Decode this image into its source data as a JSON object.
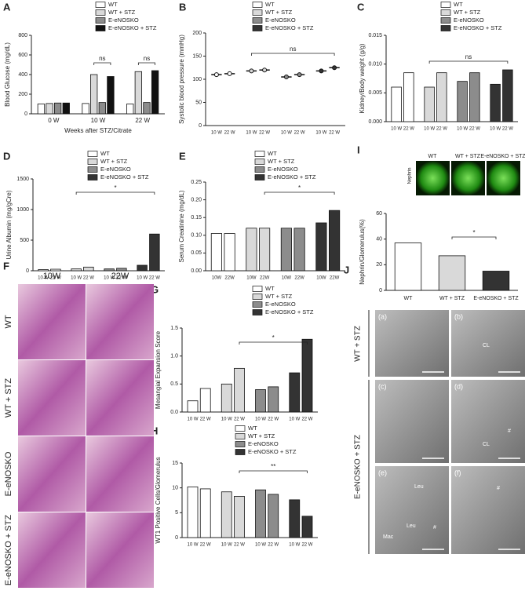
{
  "chart_data": [
    {
      "label": "A",
      "type": "bar",
      "ylabel": "Blood Glucose (mg/dL)",
      "xlabel": "Weeks after STZ/Citrate",
      "categories": [
        "0 W",
        "10 W",
        "22 W"
      ],
      "series": [
        {
          "name": "WT",
          "color": "#ffffff",
          "values": [
            100,
            105,
            100
          ]
        },
        {
          "name": "WT + STZ",
          "color": "#d9d9d9",
          "values": [
            105,
            400,
            430
          ]
        },
        {
          "name": "E-eNOSKO",
          "color": "#8c8c8c",
          "values": [
            110,
            115,
            115
          ]
        },
        {
          "name": "E-eNOSKO + STZ",
          "color": "#111111",
          "values": [
            110,
            380,
            440
          ]
        }
      ],
      "ylim": [
        0,
        800
      ],
      "yticks": [
        0,
        200,
        400,
        600,
        800
      ],
      "annotations": [
        "ns",
        "ns"
      ]
    },
    {
      "label": "B",
      "type": "strip",
      "ylabel": "Systolic blood pressure (mmHg)",
      "categories": [
        "10 W",
        "22 W"
      ],
      "series": [
        {
          "name": "WT",
          "color": "#ffffff",
          "values": [
            110,
            112
          ]
        },
        {
          "name": "WT + STZ",
          "color": "#d9d9d9",
          "values": [
            118,
            120
          ]
        },
        {
          "name": "E-eNOSKO",
          "color": "#8c8c8c",
          "values": [
            105,
            110
          ]
        },
        {
          "name": "E-eNOSKO + STZ",
          "color": "#333333",
          "values": [
            118,
            125
          ]
        }
      ],
      "ylim": [
        0,
        200
      ],
      "yticks": [
        0,
        50,
        100,
        150,
        200
      ],
      "annotations": [
        "ns"
      ]
    },
    {
      "label": "C",
      "type": "bar",
      "ylabel": "Kidney/Body weight (g/g)",
      "categories": [
        "10 W",
        "22 W"
      ],
      "series": [
        {
          "name": "WT",
          "color": "#ffffff",
          "values": [
            0.006,
            0.0085
          ]
        },
        {
          "name": "WT + STZ",
          "color": "#d9d9d9",
          "values": [
            0.006,
            0.0085
          ]
        },
        {
          "name": "E-eNOSKO",
          "color": "#8c8c8c",
          "values": [
            0.007,
            0.0085
          ]
        },
        {
          "name": "E-eNOSKO + STZ",
          "color": "#333333",
          "values": [
            0.0065,
            0.009
          ]
        }
      ],
      "ylim": [
        0,
        0.015
      ],
      "yticks": [
        {
          "value": 0,
          "label": "0.000"
        },
        {
          "value": 0.005,
          "label": "0.005"
        },
        {
          "value": 0.01,
          "label": "0.010"
        },
        {
          "value": 0.015,
          "label": "0.015"
        }
      ],
      "annotations": [
        "ns"
      ]
    },
    {
      "label": "D",
      "type": "bar",
      "ylabel": "Urine Albumin (mg/gCre)",
      "categories": [
        "10 W",
        "22 W"
      ],
      "series": [
        {
          "name": "WT",
          "color": "#ffffff",
          "values": [
            20,
            25
          ]
        },
        {
          "name": "WT + STZ",
          "color": "#d9d9d9",
          "values": [
            30,
            60
          ]
        },
        {
          "name": "E-eNOSKO",
          "color": "#8c8c8c",
          "values": [
            30,
            40
          ]
        },
        {
          "name": "E-eNOSKO + STZ",
          "color": "#333333",
          "values": [
            90,
            600
          ]
        }
      ],
      "ylim": [
        0,
        1500
      ],
      "yticks": [
        0,
        500,
        1000,
        1500
      ],
      "annotations": [
        "*"
      ]
    },
    {
      "label": "E",
      "type": "bar",
      "ylabel": "Serum Creatinine (mg/dL)",
      "categories": [
        "10W",
        "22W"
      ],
      "series": [
        {
          "name": "WT",
          "color": "#ffffff",
          "values": [
            0.105,
            0.105
          ]
        },
        {
          "name": "WT + STZ",
          "color": "#d9d9d9",
          "values": [
            0.12,
            0.12
          ]
        },
        {
          "name": "E-eNOSKO",
          "color": "#8c8c8c",
          "values": [
            0.12,
            0.12
          ]
        },
        {
          "name": "E-eNOSKO + STZ",
          "color": "#333333",
          "values": [
            0.135,
            0.17
          ]
        }
      ],
      "ylim": [
        0,
        0.25
      ],
      "yticks": [
        {
          "value": 0,
          "label": "0.00"
        },
        {
          "value": 0.05,
          "label": "0.05"
        },
        {
          "value": 0.1,
          "label": "0.10"
        },
        {
          "value": 0.15,
          "label": "0.15"
        },
        {
          "value": 0.2,
          "label": "0.20"
        },
        {
          "value": 0.25,
          "label": "0.25"
        }
      ],
      "annotations": [
        "*"
      ]
    },
    {
      "label": "I",
      "type": "bar",
      "ylabel": "Nephrin/Glomerulus(%)",
      "categories": [
        "WT",
        "WT + STZ",
        "E-eNOSKO + STZ"
      ],
      "values": [
        37,
        27,
        15
      ],
      "colors": [
        "#ffffff",
        "#d9d9d9",
        "#333333"
      ],
      "ylim": [
        0,
        60
      ],
      "yticks": [
        0,
        20,
        40,
        60
      ],
      "annotations": [
        "*"
      ],
      "image_stain": "Nephrin",
      "image_titles": [
        "WT",
        "WT + STZ",
        "E-eNOSKO + STZ"
      ]
    },
    {
      "label": "G",
      "type": "bar",
      "ylabel": "Mesangial Expansion Score",
      "categories": [
        "10 W",
        "22 W"
      ],
      "series": [
        {
          "name": "WT",
          "color": "#ffffff",
          "values": [
            0.2,
            0.42
          ]
        },
        {
          "name": "WT + STZ",
          "color": "#d9d9d9",
          "values": [
            0.5,
            0.78
          ]
        },
        {
          "name": "E-eNOSKO",
          "color": "#8c8c8c",
          "values": [
            0.4,
            0.45
          ]
        },
        {
          "name": "E-eNOSKO + STZ",
          "color": "#333333",
          "values": [
            0.7,
            1.3
          ]
        }
      ],
      "ylim": [
        0,
        1.5
      ],
      "yticks": [
        {
          "value": 0,
          "label": "0.0"
        },
        {
          "value": 0.5,
          "label": "0.5"
        },
        {
          "value": 1,
          "label": "1.0"
        },
        {
          "value": 1.5,
          "label": "1.5"
        }
      ],
      "annotations": [
        "*"
      ]
    },
    {
      "label": "H",
      "type": "bar",
      "ylabel": "WT1 Positive Cells/Glomerulus",
      "categories": [
        "10 W",
        "22 W"
      ],
      "series": [
        {
          "name": "WT",
          "color": "#ffffff",
          "values": [
            10.2,
            9.8
          ]
        },
        {
          "name": "WT + STZ",
          "color": "#d9d9d9",
          "values": [
            9.2,
            8.3
          ]
        },
        {
          "name": "E-eNOSKO",
          "color": "#8c8c8c",
          "values": [
            9.6,
            8.7
          ]
        },
        {
          "name": "E-eNOSKO + STZ",
          "color": "#333333",
          "values": [
            7.6,
            4.3
          ]
        }
      ],
      "ylim": [
        0,
        15
      ],
      "yticks": [
        0,
        5,
        10,
        15
      ],
      "annotations": [
        "**"
      ]
    }
  ],
  "figures": {
    "F": {
      "label": "F",
      "columns": [
        "10W",
        "22W"
      ],
      "rows": [
        "WT",
        "WT + STZ",
        "E-eNOSKO",
        "E-eNOSKO + STZ"
      ]
    },
    "J": {
      "label": "J",
      "groups": [
        "WT + STZ",
        "E-eNOSKO + STZ"
      ],
      "tiles": [
        {
          "label": "(a)"
        },
        {
          "label": "(b)",
          "notes": [
            "CL"
          ]
        },
        {
          "label": "(c)"
        },
        {
          "label": "(d)",
          "notes": [
            "CL",
            "#"
          ]
        },
        {
          "label": "(e)",
          "notes": [
            "Leu",
            "Leu",
            "Mac",
            "#"
          ]
        },
        {
          "label": "(f)",
          "notes": [
            "#"
          ]
        }
      ]
    }
  }
}
